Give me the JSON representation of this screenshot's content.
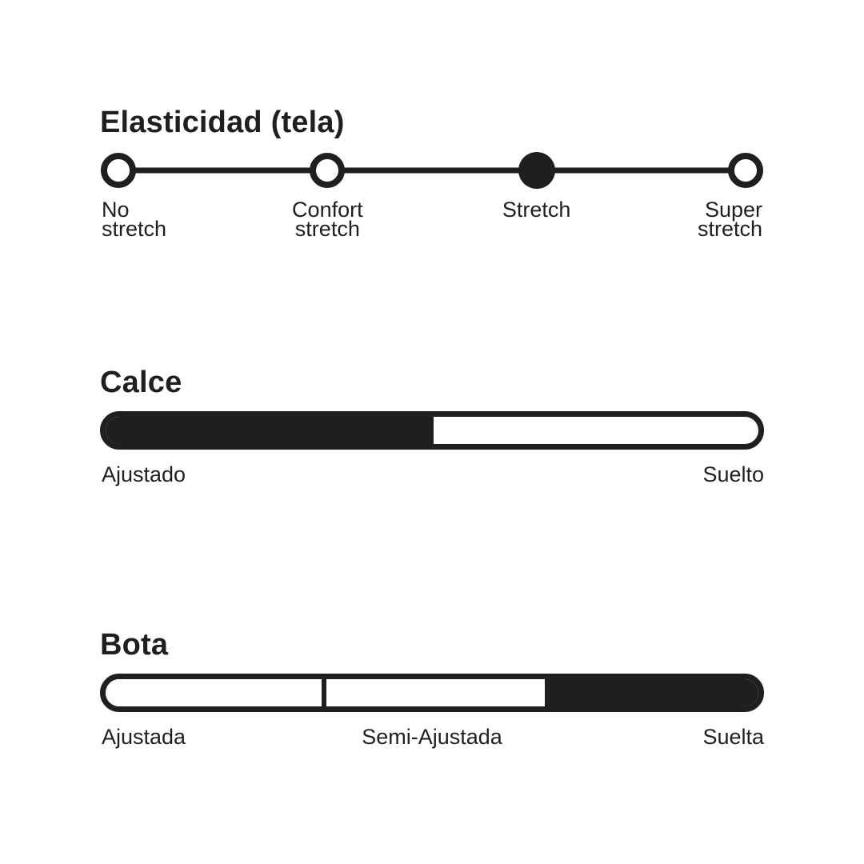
{
  "theme": {
    "background": "#ffffff",
    "ink": "#1f1f1f"
  },
  "elasticity": {
    "title": "Elasticidad (tela)",
    "selected_option": "Stretch",
    "options": [
      {
        "label": "No stretch",
        "line1": "No",
        "line2": "stretch",
        "selected": false
      },
      {
        "label": "Confort stretch",
        "line1": "Confort",
        "line2": "stretch",
        "selected": false
      },
      {
        "label": "Stretch",
        "line1": "Stretch",
        "line2": "",
        "selected": true
      },
      {
        "label": "Super stretch",
        "line1": "Super",
        "line2": "stretch",
        "selected": false
      }
    ]
  },
  "fit": {
    "title": "Calce",
    "fill_percent": 50.3,
    "min_label": "Ajustado",
    "max_label": "Suelto"
  },
  "boot": {
    "title": "Bota",
    "segment_labels": [
      "Ajustada",
      "Semi-Ajustada",
      "Suelta"
    ],
    "selected_index": 2,
    "selected_label": "Suelta"
  }
}
